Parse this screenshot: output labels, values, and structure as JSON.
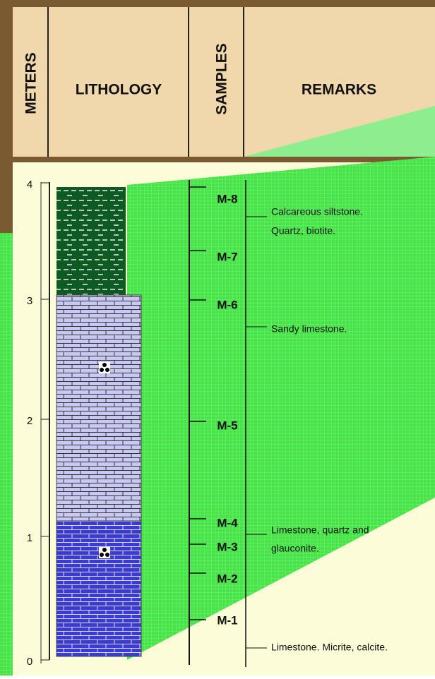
{
  "header": {
    "columns": [
      "METERS",
      "LITHOLOGY",
      "SAMPLES",
      "REMARKS"
    ]
  },
  "scale": {
    "labels": [
      "4",
      "3",
      "2",
      "1",
      "0"
    ]
  },
  "samples": [
    "M-8",
    "M-7",
    "M-6",
    "M-5",
    "M-4",
    "M-3",
    "M-2",
    "M-1"
  ],
  "remarks": [
    [
      "Calcareous siltstone.",
      "Quartz, biotite."
    ],
    [
      "Sandy limestone."
    ],
    [
      "Limestone, quartz and",
      "glauconite."
    ],
    [
      "Limestone. Micrite, calcite."
    ]
  ]
}
